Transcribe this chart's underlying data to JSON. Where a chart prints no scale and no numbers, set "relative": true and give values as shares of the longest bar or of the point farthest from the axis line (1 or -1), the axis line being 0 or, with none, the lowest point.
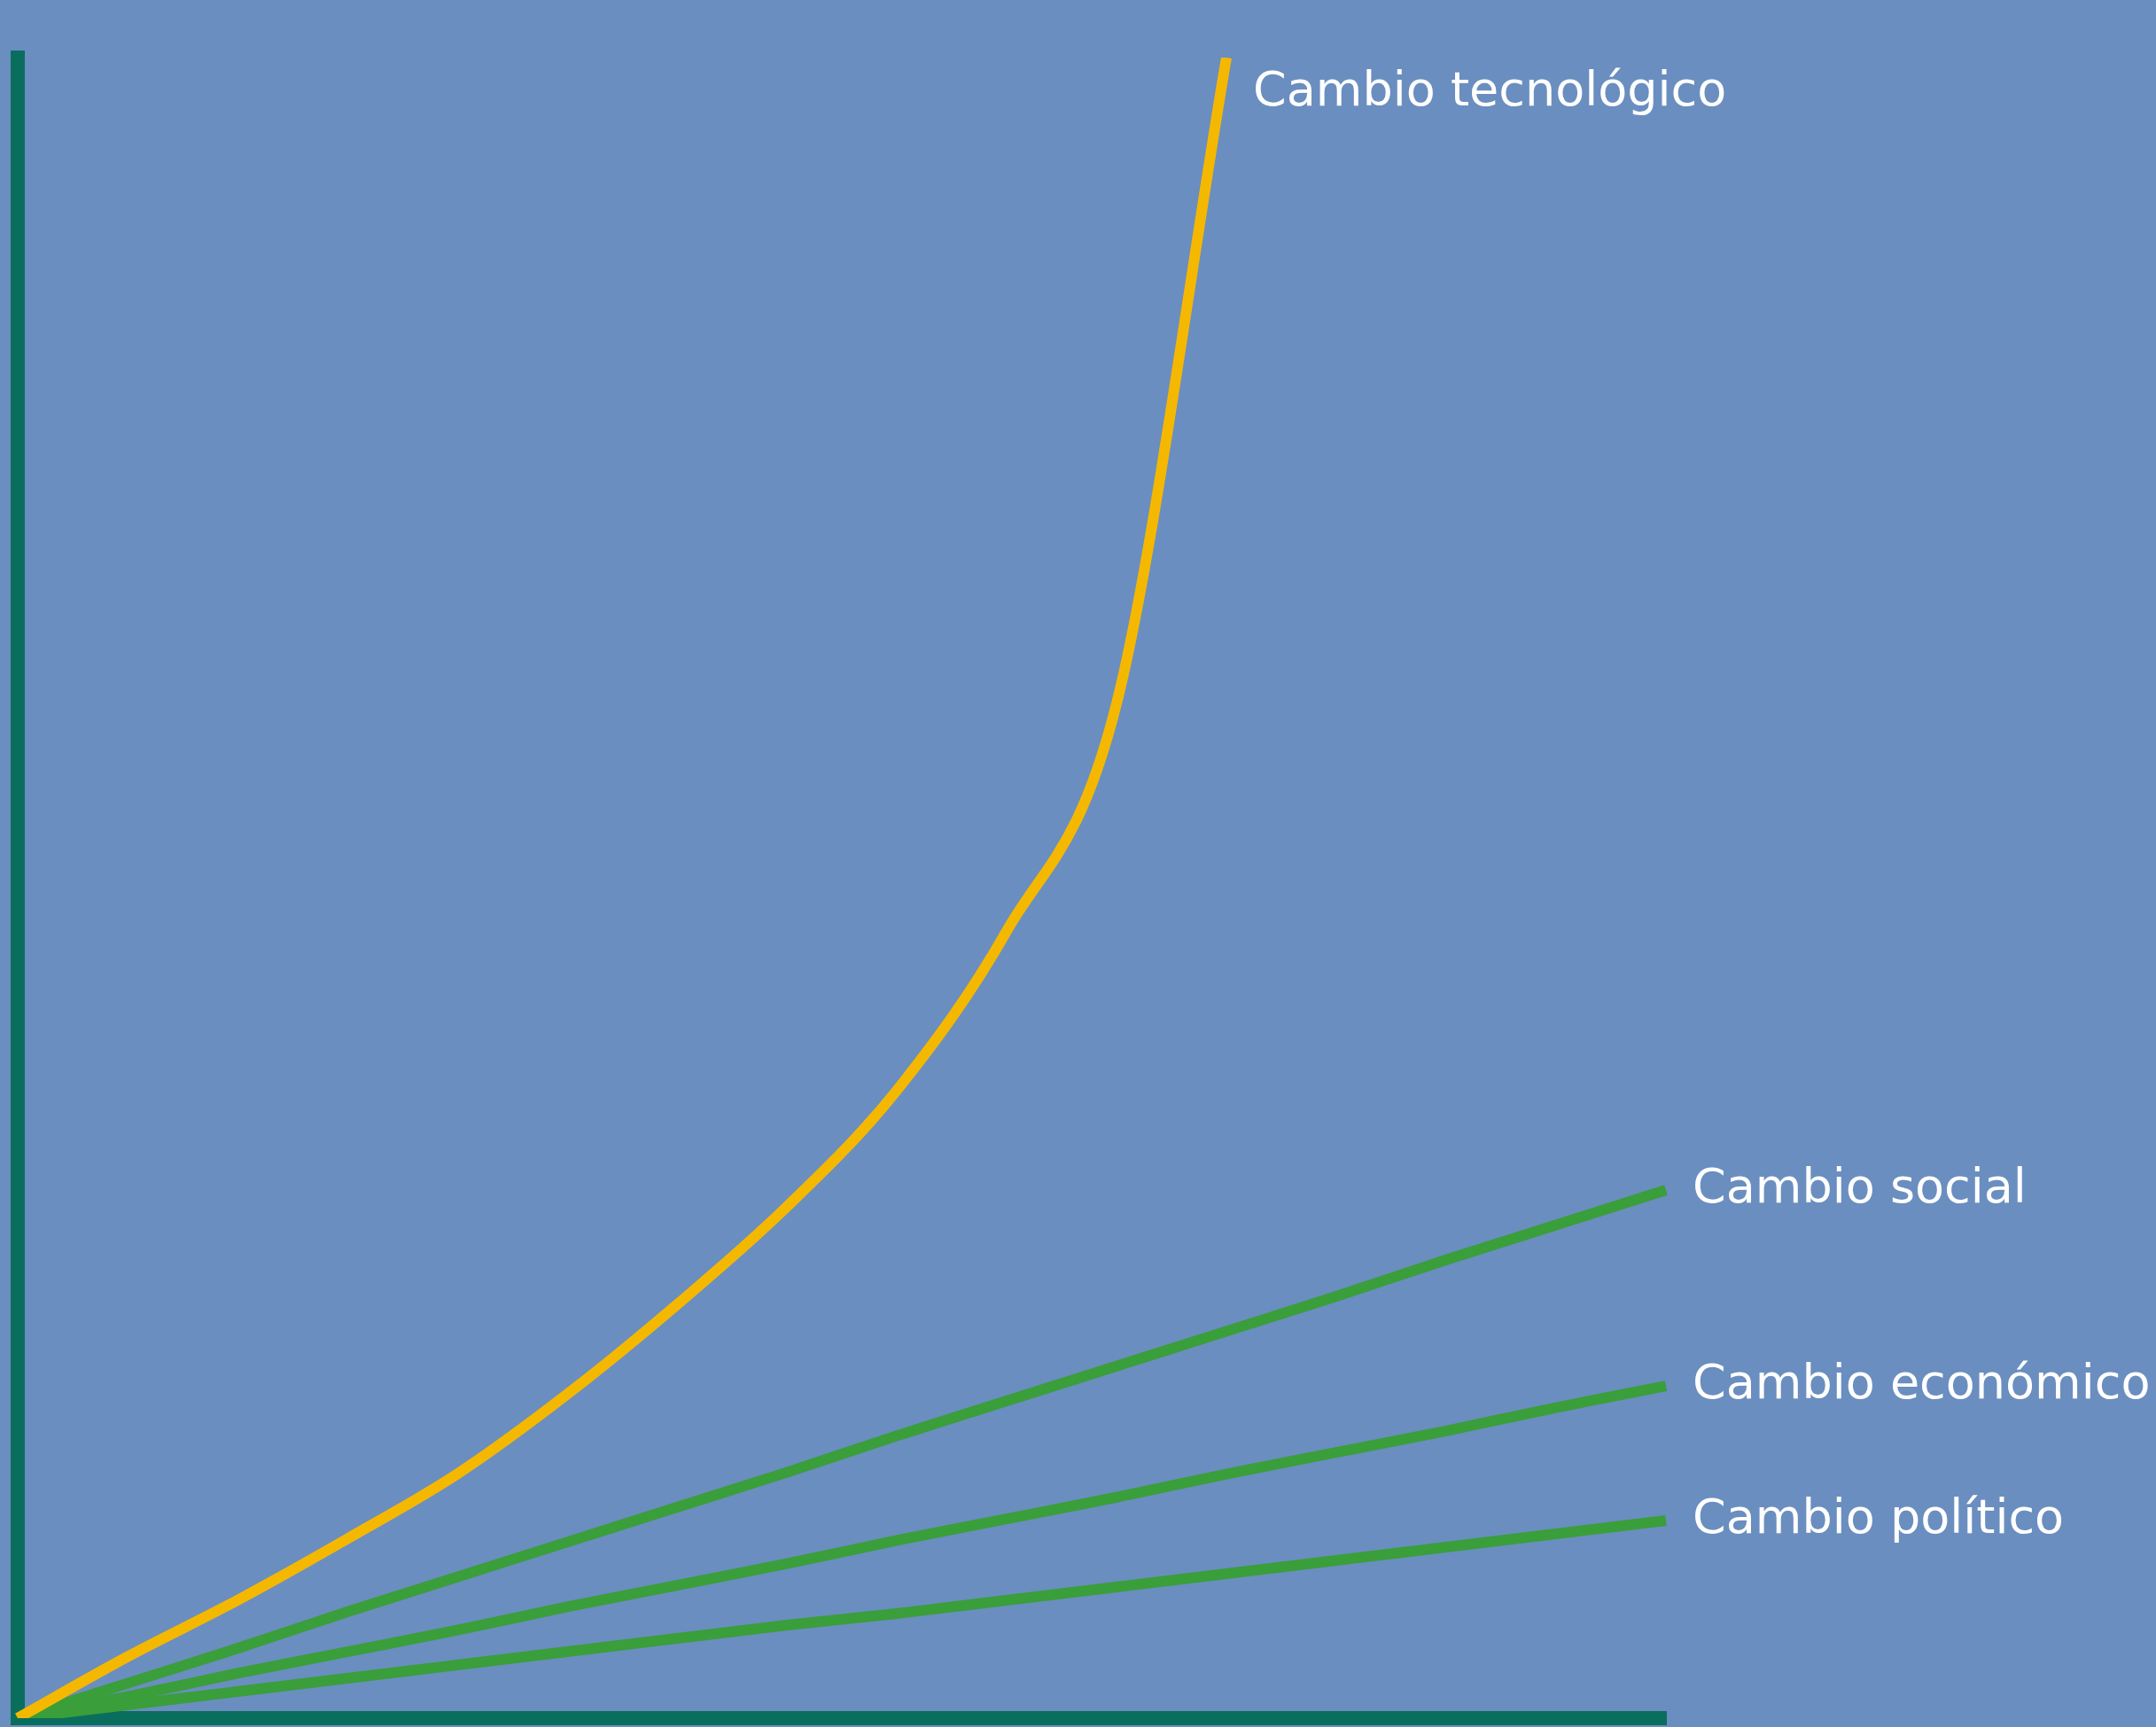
{
  "chart_data": {
    "type": "line",
    "relative": true,
    "legend": false,
    "marker": "none",
    "line_style": "solid",
    "categories": [
      null,
      null,
      null,
      null,
      null,
      null,
      null,
      null,
      null,
      null,
      null,
      null,
      null,
      null,
      null,
      null
    ],
    "series": [
      {
        "name": "Cambio tecnológico",
        "color": "#f5b800",
        "values": [
          0,
          0.037,
          0.071,
          0.108,
          0.147,
          0.195,
          0.249,
          0.308,
          0.378,
          0.474,
          0.611,
          1,
          null,
          null,
          null,
          null
        ]
      },
      {
        "name": "Cambio social",
        "color": "#3a9e3a",
        "values": [
          0,
          0.021,
          0.042,
          0.064,
          0.085,
          0.106,
          0.127,
          0.148,
          0.17,
          0.191,
          0.212,
          0.233,
          0.254,
          0.276,
          0.297,
          0.318
        ]
      },
      {
        "name": "Cambio económico",
        "color": "#3a9e3a",
        "values": [
          0,
          0.013,
          0.027,
          0.04,
          0.053,
          0.067,
          0.08,
          0.093,
          0.107,
          0.12,
          0.133,
          0.147,
          0.16,
          0.173,
          0.187,
          0.2
        ]
      },
      {
        "name": "Cambio político",
        "color": "#3a9e3a",
        "values": [
          0,
          0.008,
          0.016,
          0.024,
          0.032,
          0.04,
          0.048,
          0.056,
          0.063,
          0.071,
          0.079,
          0.087,
          0.095,
          0.103,
          0.111,
          0.119
        ]
      }
    ]
  }
}
